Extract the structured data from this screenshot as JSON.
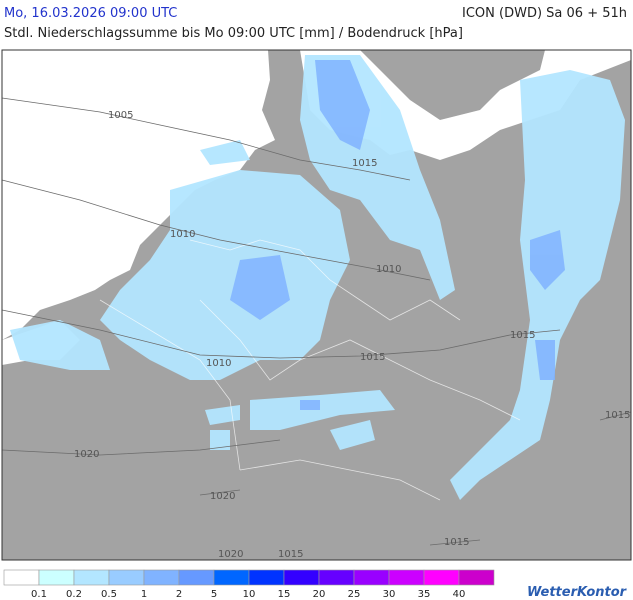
{
  "header": {
    "datetime": "Mo, 16.03.2026 09:00 UTC",
    "model": "ICON (DWD) Sa 06 + 51h",
    "subtitle": "Stdl. Niederschlagssumme bis Mo 09:00 UTC [mm] / Bodendruck [hPa]"
  },
  "isobar_labels": [
    "1005",
    "1010",
    "1010",
    "1015",
    "1015",
    "1010",
    "1015",
    "1015",
    "1020",
    "1020",
    "1020",
    "1015",
    "1015"
  ],
  "legend": {
    "colors": [
      "#ffffff",
      "#ccffff",
      "#b3e6ff",
      "#99ccff",
      "#80b3ff",
      "#6699ff",
      "#0066ff",
      "#0033ff",
      "#3300ff",
      "#6600ff",
      "#9900ff",
      "#cc00ff",
      "#ff00ff",
      "#cc00cc"
    ],
    "labels": [
      "0.1",
      "0.2",
      "0.5",
      "1",
      "2",
      "5",
      "10",
      "15",
      "20",
      "25",
      "30",
      "35",
      "40"
    ]
  },
  "logo": "WetterKontor"
}
